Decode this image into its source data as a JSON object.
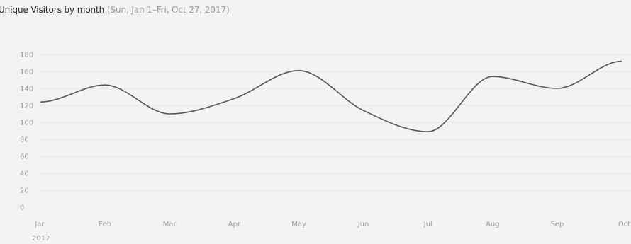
{
  "header": {
    "metric_label": "Unique Visitors by",
    "period_label": "month",
    "date_range": "(Sun, Jan 1–Fri, Oct 27, 2017)"
  },
  "chart_data": {
    "type": "line",
    "title": "Unique Visitors by month",
    "categories": [
      "Jan",
      "Feb",
      "Mar",
      "Apr",
      "May",
      "Jun",
      "Jul",
      "Aug",
      "Sep",
      "Oct"
    ],
    "x_sublabel": "2017",
    "series": [
      {
        "values": [
          124,
          144,
          110,
          128,
          161,
          114,
          89,
          154,
          140,
          172
        ]
      }
    ],
    "y_ticks": [
      0,
      20,
      40,
      60,
      80,
      100,
      120,
      140,
      160,
      180
    ],
    "ylim": [
      0,
      180
    ],
    "grid": true,
    "colors": {
      "line": "#555555",
      "grid": "#e2e2e2",
      "tick_label": "#9a9a9a"
    }
  }
}
